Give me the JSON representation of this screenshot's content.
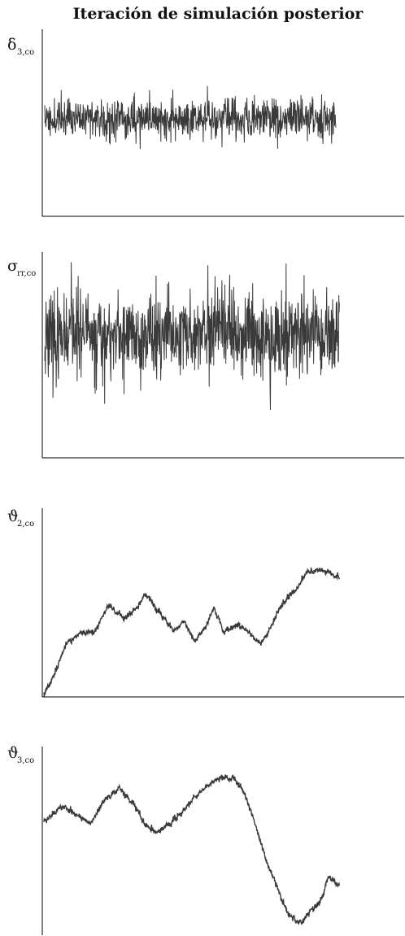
{
  "title": "Iteración de simulación posterior",
  "colors": {
    "trace": "#3a3a3a",
    "axis": "#000000"
  },
  "chart_data": [
    {
      "type": "line",
      "symbol": "δ",
      "subscript": "3,co",
      "series": [
        {
          "pattern": "noise",
          "seed": 11,
          "amplitude": 0.14,
          "center": 0.58,
          "lowFreqAmp": 0.02,
          "x": [
            0,
            0.81
          ]
        }
      ],
      "grid": false
    },
    {
      "type": "line",
      "symbol": "σ",
      "subscript": "rr,co",
      "series": [
        {
          "pattern": "noise",
          "seed": 23,
          "amplitude": 0.24,
          "center": 0.58,
          "lowFreqAmp": 0.03,
          "x": [
            0,
            0.82
          ]
        }
      ],
      "grid": false
    },
    {
      "type": "line",
      "symbol": "ϑ",
      "subscript": "2,co",
      "series": [
        {
          "pattern": "walk",
          "seed": 37,
          "x": [
            0,
            0.82
          ],
          "anchors": [
            [
              0,
              0.02
            ],
            [
              0.03,
              0.14
            ],
            [
              0.06,
              0.32
            ],
            [
              0.1,
              0.38
            ],
            [
              0.14,
              0.38
            ],
            [
              0.18,
              0.55
            ],
            [
              0.22,
              0.47
            ],
            [
              0.26,
              0.54
            ],
            [
              0.28,
              0.61
            ],
            [
              0.32,
              0.51
            ],
            [
              0.36,
              0.4
            ],
            [
              0.39,
              0.45
            ],
            [
              0.42,
              0.34
            ],
            [
              0.45,
              0.42
            ],
            [
              0.47,
              0.54
            ],
            [
              0.5,
              0.39
            ],
            [
              0.54,
              0.43
            ],
            [
              0.57,
              0.38
            ],
            [
              0.6,
              0.32
            ],
            [
              0.63,
              0.42
            ],
            [
              0.66,
              0.55
            ],
            [
              0.7,
              0.64
            ],
            [
              0.73,
              0.74
            ],
            [
              0.76,
              0.76
            ],
            [
              0.79,
              0.74
            ],
            [
              0.82,
              0.71
            ]
          ]
        }
      ],
      "grid": false
    },
    {
      "type": "line",
      "symbol": "ϑ",
      "subscript": "3,co",
      "series": [
        {
          "pattern": "walk",
          "seed": 53,
          "x": [
            0,
            0.82
          ],
          "anchors": [
            [
              0,
              0.64
            ],
            [
              0.05,
              0.72
            ],
            [
              0.09,
              0.68
            ],
            [
              0.13,
              0.62
            ],
            [
              0.17,
              0.76
            ],
            [
              0.21,
              0.82
            ],
            [
              0.25,
              0.74
            ],
            [
              0.28,
              0.62
            ],
            [
              0.31,
              0.58
            ],
            [
              0.35,
              0.62
            ],
            [
              0.39,
              0.7
            ],
            [
              0.43,
              0.8
            ],
            [
              0.47,
              0.86
            ],
            [
              0.5,
              0.89
            ],
            [
              0.53,
              0.87
            ],
            [
              0.56,
              0.78
            ],
            [
              0.59,
              0.6
            ],
            [
              0.62,
              0.4
            ],
            [
              0.65,
              0.25
            ],
            [
              0.68,
              0.12
            ],
            [
              0.71,
              0.06
            ],
            [
              0.74,
              0.14
            ],
            [
              0.77,
              0.2
            ],
            [
              0.79,
              0.32
            ],
            [
              0.82,
              0.28
            ]
          ]
        }
      ],
      "grid": false
    }
  ]
}
